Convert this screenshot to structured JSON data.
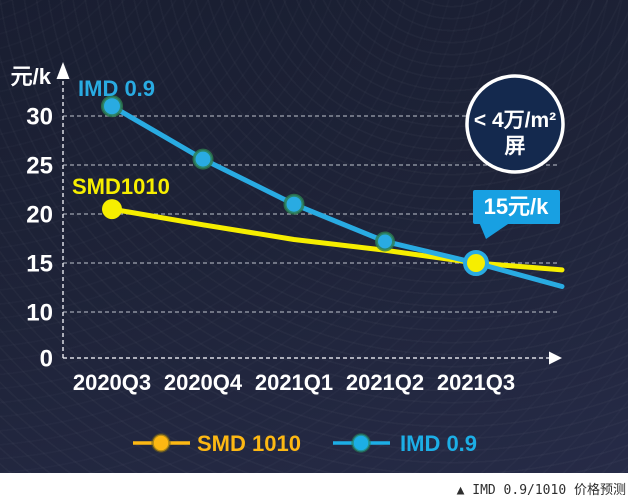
{
  "chart_data": {
    "type": "line",
    "ylabel": "元/k",
    "yticks": [
      0,
      10,
      15,
      20,
      25,
      30
    ],
    "categories": [
      "2020Q3",
      "2020Q4",
      "2021Q1",
      "2021Q2",
      "2021Q3"
    ],
    "series": [
      {
        "name": "SMD 1010",
        "inline_label": "SMD1010",
        "color": "#f6ee00",
        "values": [
          20.5,
          18.9,
          17.4,
          16.3,
          15
        ],
        "extension_value": 14.3
      },
      {
        "name": "IMD 0.9",
        "inline_label": "IMD 0.9",
        "color": "#29abe2",
        "values": [
          31,
          25.6,
          21,
          17.2,
          15
        ],
        "extension_value": 12.6
      }
    ],
    "grid": true,
    "legend_position": "bottom"
  },
  "annotations": {
    "badge": {
      "line1": "< 4万/m²",
      "line2": "屏"
    },
    "callout": {
      "label": "15元/k",
      "color": "#18a0e2",
      "points_to": "2021Q3 crossing point at 15"
    }
  },
  "legend": {
    "smd_label": "SMD 1010",
    "smd_color": "#fdb813",
    "imd_label": "IMD 0.9",
    "imd_color": "#1caee6"
  },
  "caption": "▲ IMD 0.9/1010 价格预测",
  "colors": {
    "background": "#1e2338",
    "badge_fill": "#14294e",
    "badge_border": "#ffffff",
    "axis": "#ffffff",
    "smd_line": "#f6ee00",
    "imd_line": "#29abe2",
    "highlight_dot_fill": "#f6ee00",
    "highlight_dot_ring": "#29abe2"
  }
}
